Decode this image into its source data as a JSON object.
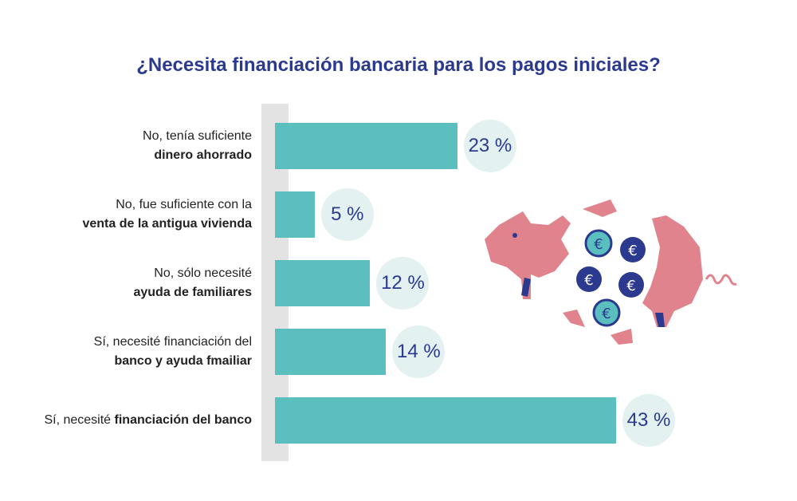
{
  "chart_data": {
    "type": "bar",
    "orientation": "horizontal",
    "title": "¿Necesita financiación bancaria para los pagos iniciales?",
    "categories": [
      {
        "normal": "No, tenía suficiente",
        "bold": "dinero ahorrado",
        "layout": "two-line"
      },
      {
        "normal": "No, fue suficiente con la",
        "bold": "venta de la antigua vivienda",
        "layout": "two-line"
      },
      {
        "normal": "No, sólo necesité",
        "bold": "ayuda de familiares",
        "layout": "two-line"
      },
      {
        "normal": "Sí, necesité financiación del",
        "bold": "banco y ayuda fmailiar",
        "layout": "two-line"
      },
      {
        "normal": "Sí, necesité",
        "bold": "financiación del banco",
        "layout": "inline"
      }
    ],
    "values": [
      23,
      5,
      12,
      14,
      43
    ],
    "value_labels": [
      "23 %",
      "5 %",
      "12 %",
      "14 %",
      "43 %"
    ],
    "xlim": [
      0,
      43
    ],
    "grid": false
  },
  "colors": {
    "bar": "#5bbfbf",
    "title": "#2b3a8f",
    "bubble": "#e3f1f1",
    "axis_strip": "#e3e3e3",
    "pig": "#e0838c",
    "coin": "#2b3a8f"
  },
  "illustration": {
    "icon": "broken-piggy-bank-icon"
  }
}
